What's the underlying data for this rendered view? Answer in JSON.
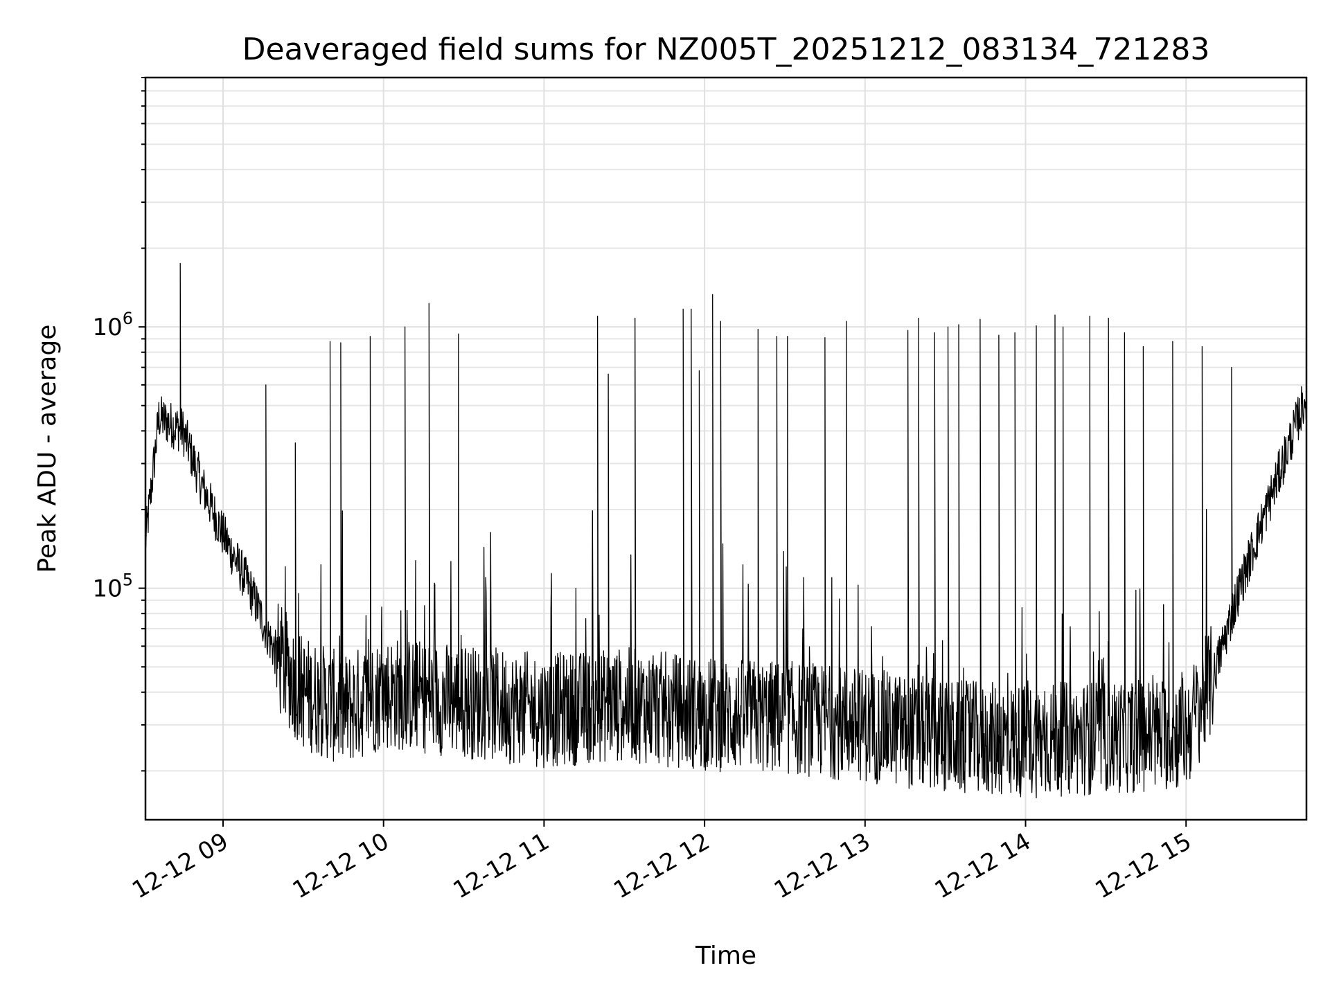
{
  "chart_data": {
    "type": "line",
    "title": "Deaveraged field sums for NZ005T_20251212_083134_721283",
    "xlabel": "Time",
    "ylabel": "Peak ADU - average",
    "yscale": "log",
    "ylim": [
      13000,
      9000000
    ],
    "xlim": [
      "2025-12-12 08:31",
      "2025-12-12 15:45"
    ],
    "grid": true,
    "line_color": "#000000",
    "xticks": [
      {
        "t": "2025-12-12 09:00",
        "label": "12-12 09"
      },
      {
        "t": "2025-12-12 10:00",
        "label": "12-12 10"
      },
      {
        "t": "2025-12-12 11:00",
        "label": "12-12 11"
      },
      {
        "t": "2025-12-12 12:00",
        "label": "12-12 12"
      },
      {
        "t": "2025-12-12 13:00",
        "label": "12-12 13"
      },
      {
        "t": "2025-12-12 14:00",
        "label": "12-12 14"
      },
      {
        "t": "2025-12-12 15:00",
        "label": "12-12 15"
      }
    ],
    "yticks": [
      {
        "value": 100000,
        "base": "10",
        "exp": "5"
      },
      {
        "value": 1000000,
        "base": "10",
        "exp": "6"
      }
    ],
    "baseline": [
      [
        "2025-12-12 08:31",
        150000
      ],
      [
        "2025-12-12 08:36",
        450000
      ],
      [
        "2025-12-12 08:45",
        400000
      ],
      [
        "2025-12-12 08:52",
        250000
      ],
      [
        "2025-12-12 09:00",
        160000
      ],
      [
        "2025-12-12 09:10",
        100000
      ],
      [
        "2025-12-12 09:20",
        55000
      ],
      [
        "2025-12-12 09:30",
        40000
      ],
      [
        "2025-12-12 09:45",
        34000
      ],
      [
        "2025-12-12 10:00",
        40000
      ],
      [
        "2025-12-12 10:30",
        37000
      ],
      [
        "2025-12-12 11:00",
        34000
      ],
      [
        "2025-12-12 11:30",
        36000
      ],
      [
        "2025-12-12 12:00",
        33000
      ],
      [
        "2025-12-12 12:30",
        32000
      ],
      [
        "2025-12-12 13:00",
        30000
      ],
      [
        "2025-12-12 13:30",
        27000
      ],
      [
        "2025-12-12 14:00",
        26000
      ],
      [
        "2025-12-12 14:30",
        27000
      ],
      [
        "2025-12-12 15:00",
        28000
      ],
      [
        "2025-12-12 15:10",
        45000
      ],
      [
        "2025-12-12 15:20",
        100000
      ],
      [
        "2025-12-12 15:30",
        200000
      ],
      [
        "2025-12-12 15:45",
        550000
      ]
    ],
    "spikes": [
      [
        "2025-12-12 08:44",
        1750000
      ],
      [
        "2025-12-12 09:16",
        600000
      ],
      [
        "2025-12-12 09:27",
        360000
      ],
      [
        "2025-12-12 09:40",
        880000
      ],
      [
        "2025-12-12 09:44",
        870000
      ],
      [
        "2025-12-12 09:55",
        920000
      ],
      [
        "2025-12-12 10:08",
        1000000
      ],
      [
        "2025-12-12 10:17",
        1230000
      ],
      [
        "2025-12-12 10:28",
        940000
      ],
      [
        "2025-12-12 11:20",
        1100000
      ],
      [
        "2025-12-12 11:24",
        660000
      ],
      [
        "2025-12-12 11:34",
        1080000
      ],
      [
        "2025-12-12 11:52",
        1170000
      ],
      [
        "2025-12-12 11:55",
        1170000
      ],
      [
        "2025-12-12 11:58",
        680000
      ],
      [
        "2025-12-12 12:03",
        1330000
      ],
      [
        "2025-12-12 12:06",
        1050000
      ],
      [
        "2025-12-12 12:20",
        980000
      ],
      [
        "2025-12-12 12:27",
        920000
      ],
      [
        "2025-12-12 12:31",
        920000
      ],
      [
        "2025-12-12 12:45",
        910000
      ],
      [
        "2025-12-12 12:53",
        1050000
      ],
      [
        "2025-12-12 13:16",
        970000
      ],
      [
        "2025-12-12 13:20",
        1080000
      ],
      [
        "2025-12-12 13:26",
        950000
      ],
      [
        "2025-12-12 13:31",
        1000000
      ],
      [
        "2025-12-12 13:35",
        1020000
      ],
      [
        "2025-12-12 13:43",
        1070000
      ],
      [
        "2025-12-12 13:50",
        930000
      ],
      [
        "2025-12-12 13:56",
        950000
      ],
      [
        "2025-12-12 14:04",
        1010000
      ],
      [
        "2025-12-12 14:11",
        1110000
      ],
      [
        "2025-12-12 14:14",
        1000000
      ],
      [
        "2025-12-12 14:24",
        1100000
      ],
      [
        "2025-12-12 14:31",
        1080000
      ],
      [
        "2025-12-12 14:37",
        950000
      ],
      [
        "2025-12-12 14:44",
        840000
      ],
      [
        "2025-12-12 14:55",
        880000
      ],
      [
        "2025-12-12 15:06",
        840000
      ],
      [
        "2025-12-12 15:17",
        700000
      ]
    ]
  }
}
